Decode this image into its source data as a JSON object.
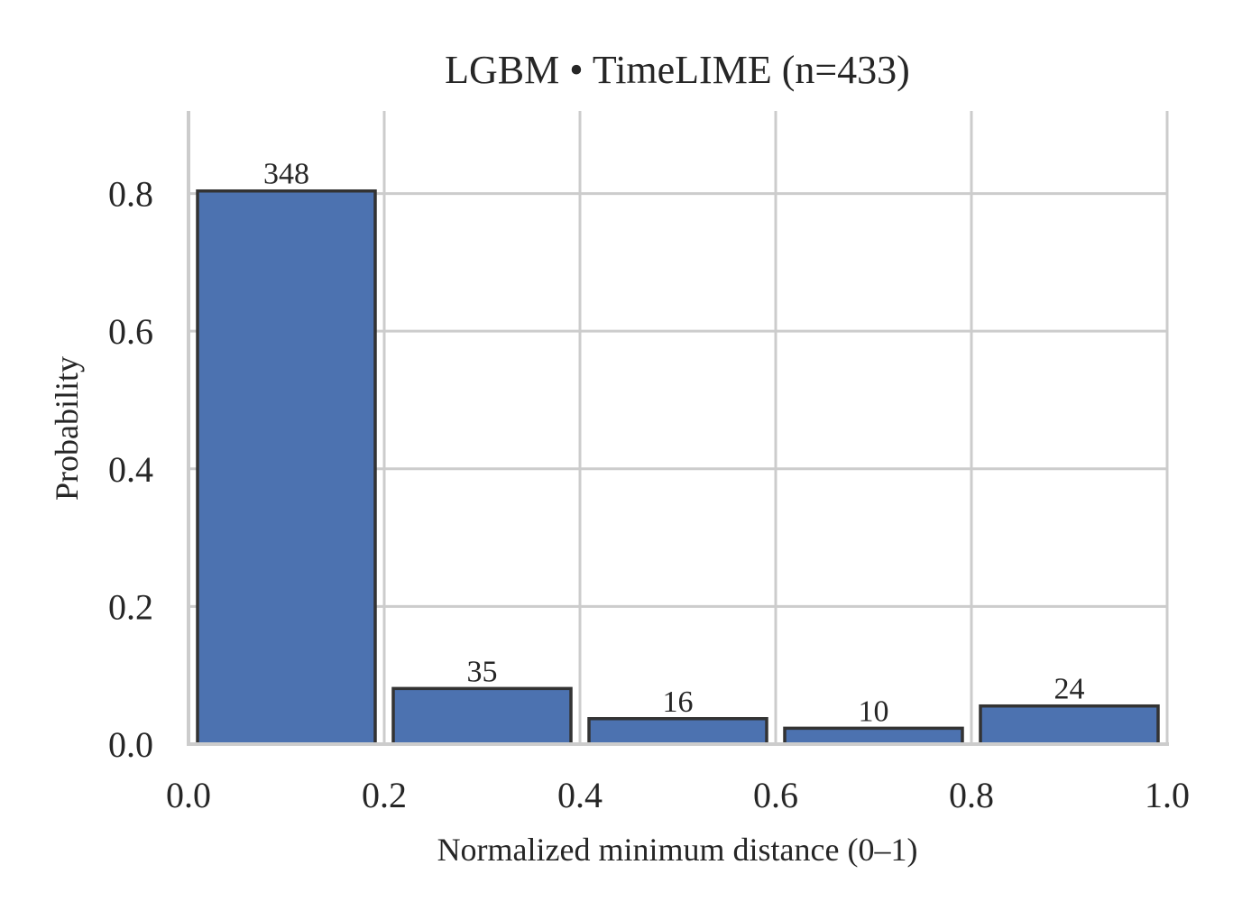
{
  "chart_data": {
    "type": "bar",
    "title": "LGBM • TimeLIME  (n=433)",
    "xlabel": "Normalized minimum distance (0–1)",
    "ylabel": "Probability",
    "xlim": [
      0.0,
      1.0
    ],
    "ylim": [
      0.0,
      0.92
    ],
    "xticks": [
      "0.0",
      "0.2",
      "0.4",
      "0.6",
      "0.8",
      "1.0"
    ],
    "yticks": [
      "0.0",
      "0.2",
      "0.4",
      "0.6",
      "0.8"
    ],
    "grid": true,
    "bins": [
      {
        "start": 0.0,
        "end": 0.2,
        "value": 0.8037,
        "count": "348"
      },
      {
        "start": 0.2,
        "end": 0.4,
        "value": 0.0808,
        "count": "35"
      },
      {
        "start": 0.4,
        "end": 0.6,
        "value": 0.037,
        "count": "16"
      },
      {
        "start": 0.6,
        "end": 0.8,
        "value": 0.0231,
        "count": "10"
      },
      {
        "start": 0.8,
        "end": 1.0,
        "value": 0.0554,
        "count": "24"
      }
    ],
    "bar_color": "#4c72b0",
    "edge_color": "#333333"
  }
}
